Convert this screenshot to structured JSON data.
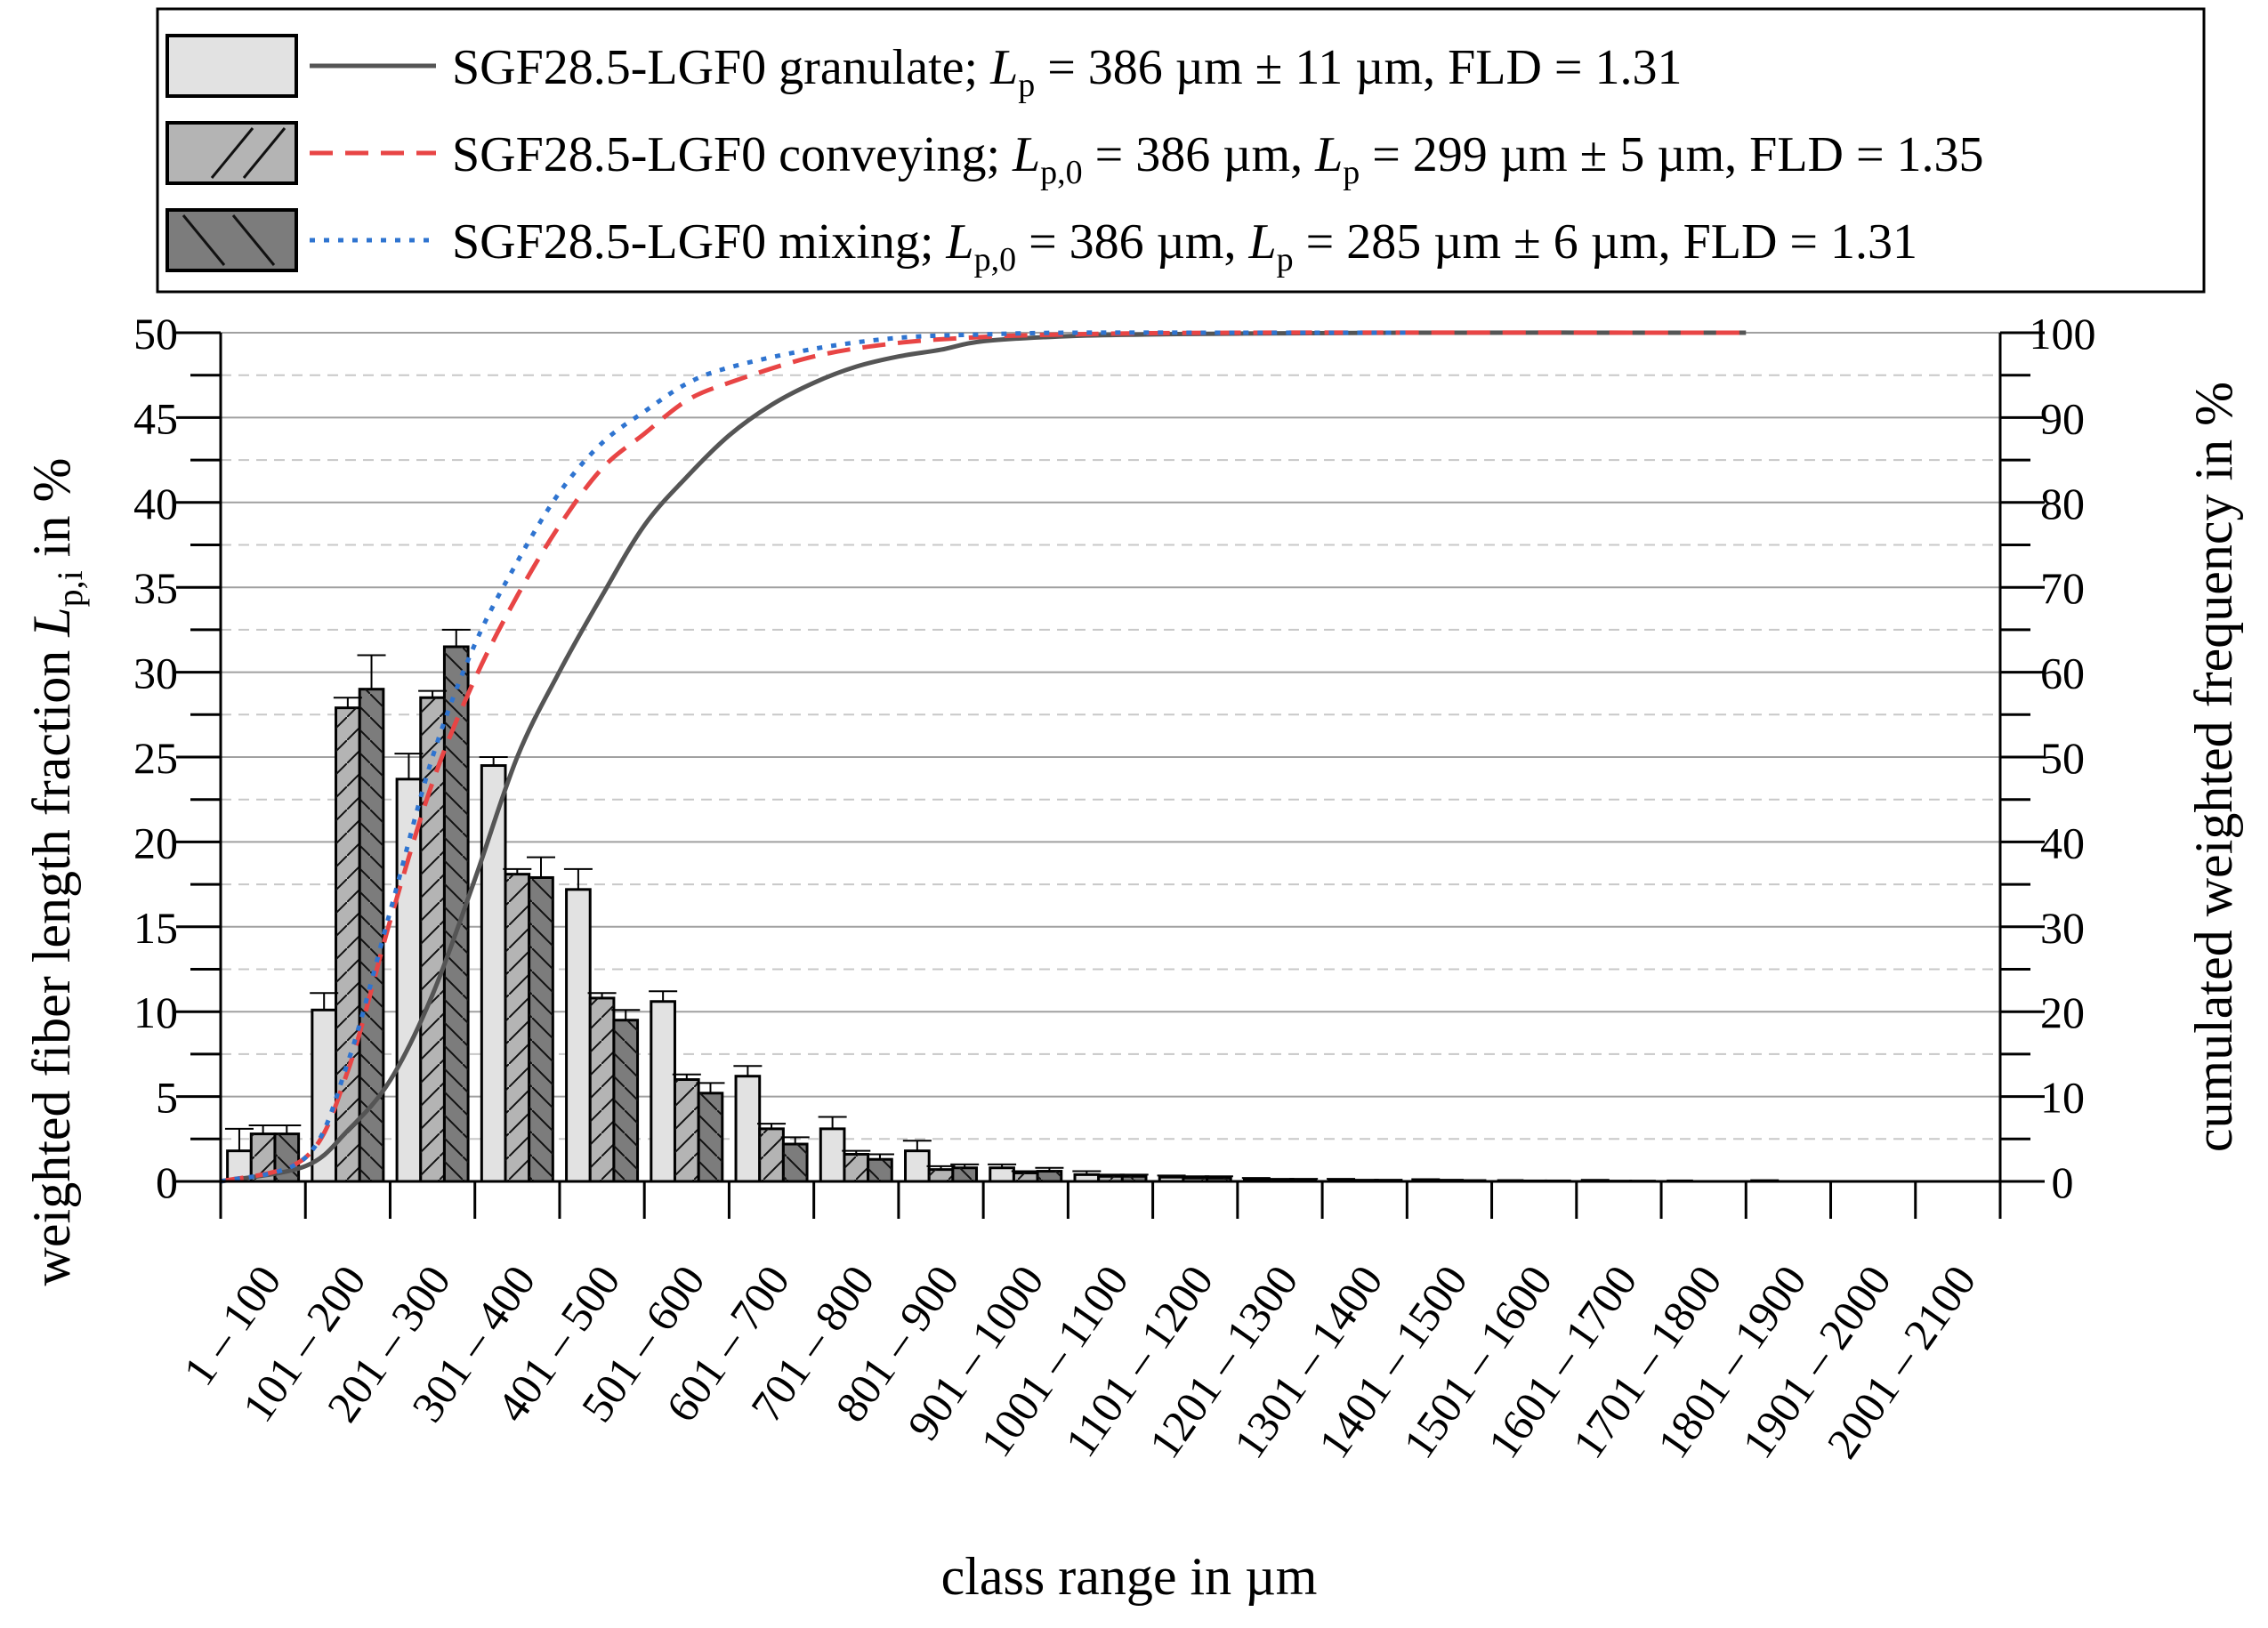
{
  "chart_data": {
    "type": "bar",
    "categories": [
      "1 – 100",
      "101 – 200",
      "201 – 300",
      "301 – 400",
      "401 – 500",
      "501 – 600",
      "601 – 700",
      "701 – 800",
      "801 – 900",
      "901 – 1000",
      "1001 – 1100",
      "1101 – 1200",
      "1201 – 1300",
      "1301 – 1400",
      "1401 – 1500",
      "1501 – 1600",
      "1601 – 1700",
      "1701 – 1800",
      "1801 – 1900",
      "1901 – 2000",
      "2001 – 2100"
    ],
    "xlabel": "class range in µm",
    "ylabel_prefix": "weighted fiber length fraction ",
    "ylabel_var": "L",
    "ylabel_sub": "p,i",
    "ylabel_suffix": " in %",
    "y2label": "cumulated weighted frequency in %",
    "ylim": [
      0,
      50
    ],
    "y2lim": [
      0,
      100
    ],
    "yticks": [
      "0",
      "5",
      "10",
      "15",
      "20",
      "25",
      "30",
      "35",
      "40",
      "45",
      "50"
    ],
    "y2ticks": [
      "0",
      "10",
      "20",
      "30",
      "40",
      "50",
      "60",
      "70",
      "80",
      "90",
      "100"
    ],
    "series": [
      {
        "name": "SGF28.5-LGF0 granulate",
        "legend_parts": [
          "SGF28.5-LGF0 granulate; ",
          "L",
          "p",
          " = 386 µm ± 11 µm, FLD = 1.31"
        ],
        "fill": "#e2e2e2",
        "hatch": "none",
        "line_color": "#555555",
        "line_style": "solid",
        "values": [
          1.8,
          10.1,
          23.7,
          24.5,
          17.2,
          10.6,
          6.2,
          3.1,
          1.8,
          0.8,
          0.4,
          0.25,
          0.15,
          0.1,
          0.08,
          0.05,
          0.04,
          0.03,
          0.02,
          0.0,
          0.0
        ],
        "errors": [
          1.3,
          1.0,
          1.5,
          0.5,
          1.2,
          0.6,
          0.6,
          0.7,
          0.6,
          0.2,
          0.2,
          0.1,
          0.05,
          0.05,
          0.05,
          0.0,
          0.05,
          0.0,
          0.05,
          0.0,
          0.0
        ],
        "cumulative": [
          [
            0,
            0
          ],
          [
            100,
            1.8
          ],
          [
            150,
            6
          ],
          [
            200,
            11.9
          ],
          [
            250,
            22
          ],
          [
            300,
            35.6
          ],
          [
            350,
            50
          ],
          [
            400,
            60.1
          ],
          [
            450,
            69
          ],
          [
            500,
            77.3
          ],
          [
            550,
            83
          ],
          [
            600,
            87.9
          ],
          [
            650,
            91.5
          ],
          [
            700,
            94.1
          ],
          [
            750,
            96
          ],
          [
            800,
            97.2
          ],
          [
            850,
            98
          ],
          [
            900,
            99
          ],
          [
            1000,
            99.6
          ],
          [
            1100,
            99.8
          ],
          [
            1200,
            99.9
          ],
          [
            1400,
            100
          ],
          [
            1800,
            100
          ]
        ]
      },
      {
        "name": "SGF28.5-LGF0 conveying",
        "legend_parts": [
          "SGF28.5-LGF0 conveying; ",
          "L",
          "p,0",
          " = 386 µm, ",
          "L",
          "p",
          " = 299 µm ± 5 µm, FLD = 1.35"
        ],
        "fill": "#b4b4b4",
        "hatch": "fwd",
        "line_color": "#e84545",
        "line_style": "dashed",
        "values": [
          2.8,
          27.9,
          28.5,
          18.1,
          10.8,
          6.0,
          3.1,
          1.6,
          0.7,
          0.5,
          0.3,
          0.2,
          0.1,
          0.05,
          0.05,
          0.03,
          0.02,
          0.0,
          0.0,
          0.0,
          0.0
        ],
        "errors": [
          0.5,
          0.6,
          0.4,
          0.3,
          0.3,
          0.3,
          0.3,
          0.2,
          0.2,
          0.1,
          0.1,
          0.1,
          0.05,
          0.05,
          0.05,
          0.0,
          0.0,
          0.0,
          0.0,
          0.0,
          0.0
        ],
        "cumulative": [
          [
            0,
            0
          ],
          [
            100,
            2.8
          ],
          [
            150,
            13
          ],
          [
            200,
            30.7
          ],
          [
            250,
            47
          ],
          [
            300,
            59.2
          ],
          [
            350,
            69
          ],
          [
            400,
            77.3
          ],
          [
            450,
            84
          ],
          [
            500,
            88.1
          ],
          [
            550,
            92
          ],
          [
            600,
            94.1
          ],
          [
            700,
            97.2
          ],
          [
            800,
            98.8
          ],
          [
            900,
            99.5
          ],
          [
            1000,
            99.8
          ],
          [
            1200,
            100
          ],
          [
            1800,
            100
          ]
        ]
      },
      {
        "name": "SGF28.5-LGF0 mixing",
        "legend_parts": [
          "SGF28.5-LGF0 mixing; ",
          "L",
          "p,0",
          " = 386 µm, ",
          "L",
          "p",
          " = 285 µm ± 6 µm, FLD = 1.31"
        ],
        "fill": "#7c7c7c",
        "hatch": "back",
        "line_color": "#2f74d0",
        "line_style": "dotted",
        "values": [
          2.8,
          29.0,
          31.5,
          17.9,
          9.5,
          5.2,
          2.2,
          1.3,
          0.8,
          0.6,
          0.3,
          0.2,
          0.1,
          0.05,
          0.05,
          0.03,
          0.02,
          0.0,
          0.0,
          0.0,
          0.0
        ],
        "errors": [
          0.5,
          2.0,
          1.0,
          1.2,
          0.6,
          0.6,
          0.4,
          0.3,
          0.2,
          0.2,
          0.1,
          0.1,
          0.05,
          0.05,
          0.0,
          0.0,
          0.0,
          0.0,
          0.0,
          0.0,
          0.0
        ],
        "cumulative": [
          [
            0,
            0
          ],
          [
            100,
            2.8
          ],
          [
            150,
            14
          ],
          [
            200,
            31.8
          ],
          [
            250,
            50
          ],
          [
            300,
            63.3
          ],
          [
            350,
            73
          ],
          [
            400,
            81.2
          ],
          [
            450,
            87
          ],
          [
            500,
            90.7
          ],
          [
            550,
            94
          ],
          [
            600,
            95.9
          ],
          [
            700,
            98.1
          ],
          [
            800,
            99.4
          ],
          [
            900,
            99.8
          ],
          [
            1000,
            100
          ],
          [
            1200,
            100
          ],
          [
            1400,
            100
          ]
        ]
      }
    ]
  }
}
